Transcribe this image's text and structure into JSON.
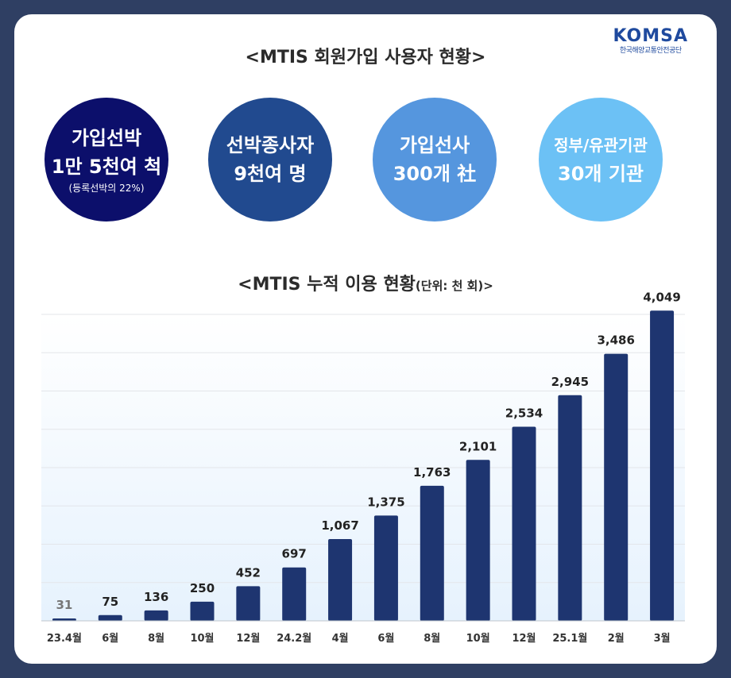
{
  "brand": {
    "name": "KOMSA",
    "sub": "한국해양교통안전공단",
    "color": "#1f4a9e"
  },
  "stats_title": "<MTIS 회원가입 사용자 현황>",
  "stats": [
    {
      "line1": "가입선박",
      "line2": "1만 5천여 척",
      "note": "(등록선박의 22%)",
      "color": "#0c0f6b"
    },
    {
      "line1": "선박종사자",
      "line2": "9천여 명",
      "note": "",
      "color": "#214a8f"
    },
    {
      "line1": "가입선사",
      "line2": "300개 社",
      "note": "",
      "color": "#5596de"
    },
    {
      "line1": "정부/유관기관",
      "line2": "30개 기관",
      "note": "",
      "color": "#6cc1f5"
    }
  ],
  "chart_title": "<MTIS 누적 이용 현황",
  "chart_unit": "(단위: 천 회)>",
  "chart_data": {
    "type": "bar",
    "title": "<MTIS 누적 이용 현황(단위: 천 회)>",
    "categories": [
      "23.4월",
      "6월",
      "8월",
      "10월",
      "12월",
      "24.2월",
      "4월",
      "6월",
      "8월",
      "10월",
      "12월",
      "25.1월",
      "2월",
      "3월"
    ],
    "values": [
      31,
      75,
      136,
      250,
      452,
      697,
      1067,
      1375,
      1763,
      2101,
      2534,
      2945,
      3486,
      4049
    ],
    "value_labels": [
      "31",
      "75",
      "136",
      "250",
      "452",
      "697",
      "1,067",
      "1,375",
      "1,763",
      "2,101",
      "2,534",
      "2,945",
      "3,486",
      "4,049"
    ],
    "ylim": [
      0,
      4000
    ],
    "grid": true,
    "bar_color": "#1e3570",
    "first_label_color": "#777777"
  }
}
